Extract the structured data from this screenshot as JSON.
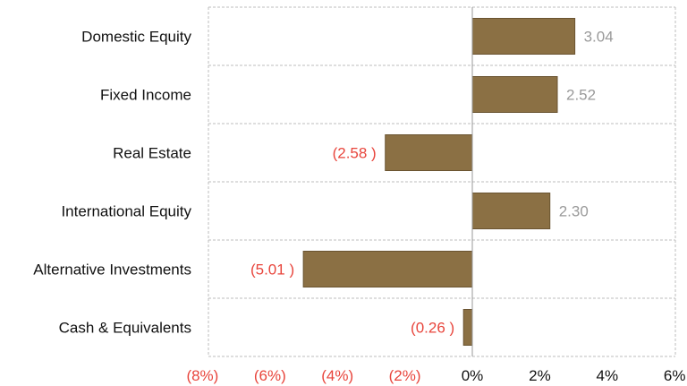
{
  "chart_data": {
    "type": "bar",
    "orientation": "horizontal",
    "categories": [
      "Domestic Equity",
      "Fixed Income",
      "Real Estate",
      "International Equity",
      "Alternative Investments",
      "Cash & Equivalents"
    ],
    "values": [
      3.04,
      2.52,
      -2.58,
      2.3,
      -5.01,
      -0.26
    ],
    "data_labels": [
      "3.04",
      "2.52",
      "(2.58 )",
      "2.30",
      "(5.01 )",
      "(0.26 )"
    ],
    "xlim": [
      -8,
      6
    ],
    "x_ticks": [
      -8,
      -6,
      -4,
      -2,
      0,
      2,
      4,
      6
    ],
    "x_tick_labels": [
      "(8%)",
      "(6%)",
      "(4%)",
      "(2%)",
      "0%",
      "2%",
      "4%",
      "6%"
    ],
    "title": "",
    "xlabel": "",
    "ylabel": "",
    "grid": "horizontal dashed separators and vertical dashed lines at plot edges",
    "legend": "none",
    "colors": {
      "bar": "#8b7044",
      "bar_edge": "#6a5431",
      "negative_label": "#e8453c",
      "positive_label": "#9a9a9a",
      "axis_text": "#111111",
      "negative_tick": "#e8453c",
      "gridline": "#bdbdbd"
    }
  }
}
